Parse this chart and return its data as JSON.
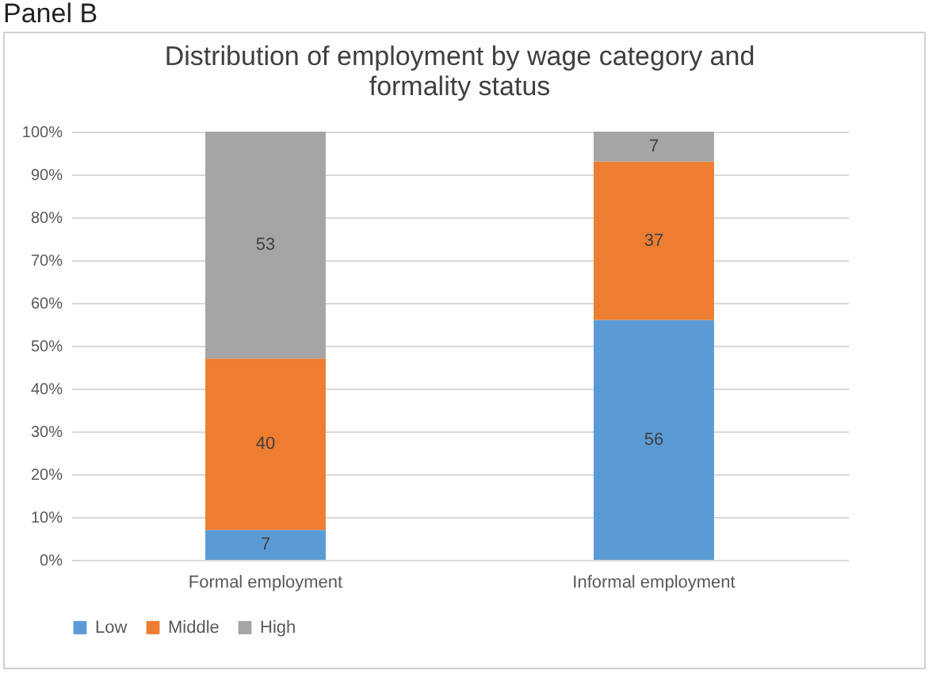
{
  "chart_data": {
    "type": "bar",
    "title": "Distribution of employment by wage category and formality status",
    "annotations": [
      "Panel B"
    ],
    "categories": [
      "Formal employment",
      "Informal employment"
    ],
    "series": [
      {
        "name": "Low",
        "color": "#5b9bd5",
        "values": [
          7,
          56
        ]
      },
      {
        "name": "Middle",
        "color": "#ed7d31",
        "values": [
          40,
          37
        ]
      },
      {
        "name": "High",
        "color": "#a5a5a5",
        "values": [
          53,
          7
        ]
      }
    ],
    "stacked": true,
    "data_labels": true,
    "ylim": [
      0,
      100
    ],
    "yticks": [
      {
        "value": 0,
        "label": "0%"
      },
      {
        "value": 10,
        "label": "10%"
      },
      {
        "value": 20,
        "label": "20%"
      },
      {
        "value": 30,
        "label": "30%"
      },
      {
        "value": 40,
        "label": "40%"
      },
      {
        "value": 50,
        "label": "50%"
      },
      {
        "value": 60,
        "label": "60%"
      },
      {
        "value": 70,
        "label": "70%"
      },
      {
        "value": 80,
        "label": "80%"
      },
      {
        "value": 90,
        "label": "90%"
      },
      {
        "value": 100,
        "label": "100%"
      }
    ],
    "grid": "y",
    "legend": "bottom"
  }
}
